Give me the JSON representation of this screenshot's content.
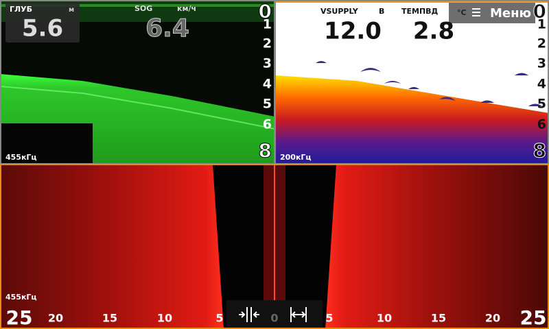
{
  "left_panel": {
    "depth_label": "ГЛУБ",
    "depth_unit": "м",
    "depth_value": "5.6",
    "sog_label": "SOG",
    "sog_unit": "км/ч",
    "sog_value": "6.4",
    "scale": [
      "0",
      "1",
      "2",
      "3",
      "4",
      "5",
      "6",
      "8"
    ],
    "frequency": "455кГц"
  },
  "right_panel": {
    "vsupply_label": "VSUPPLY",
    "vsupply_unit": "В",
    "vsupply_value": "12.0",
    "temp_label": "ТЕМПВД",
    "temp_unit": "°C",
    "temp_value": "2.8",
    "menu": "Меню",
    "scale": [
      "0",
      "1",
      "2",
      "3",
      "4",
      "5",
      "6",
      "8"
    ],
    "frequency": "200кГц"
  },
  "bottom_panel": {
    "frequency": "455кГц",
    "scale": [
      "25",
      "20",
      "15",
      "10",
      "5",
      "0",
      "5",
      "10",
      "15",
      "20",
      "25"
    ]
  }
}
